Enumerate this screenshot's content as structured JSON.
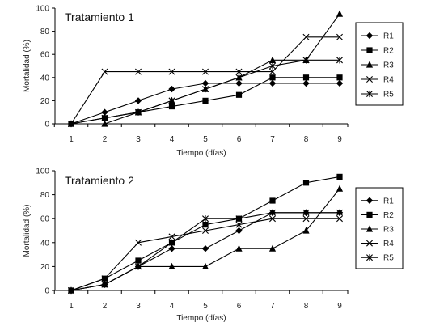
{
  "chart_data": [
    {
      "type": "line",
      "title": "Tratamiento 1",
      "xlabel": "Tiempo (días)",
      "ylabel": "Mortalidad (%)",
      "ylim": [
        0,
        100
      ],
      "yticks": [
        0,
        20,
        40,
        60,
        80,
        100
      ],
      "x": [
        1,
        2,
        3,
        4,
        5,
        6,
        7,
        8,
        9
      ],
      "grid": false,
      "legend_position": "right",
      "series": [
        {
          "name": "R1",
          "marker": "diamond",
          "values": [
            0,
            10,
            20,
            30,
            35,
            35,
            35,
            35,
            35
          ]
        },
        {
          "name": "R2",
          "marker": "square",
          "values": [
            0,
            5,
            10,
            15,
            20,
            25,
            40,
            40,
            40
          ]
        },
        {
          "name": "R3",
          "marker": "triangle",
          "values": [
            0,
            0,
            10,
            20,
            30,
            40,
            55,
            55,
            95
          ]
        },
        {
          "name": "R4",
          "marker": "x",
          "values": [
            0,
            45,
            45,
            45,
            45,
            45,
            45,
            75,
            75
          ]
        },
        {
          "name": "R5",
          "marker": "star",
          "values": [
            0,
            5,
            10,
            20,
            30,
            40,
            50,
            55,
            55
          ]
        }
      ]
    },
    {
      "type": "line",
      "title": "Tratamiento 2",
      "xlabel": "Tiempo (días)",
      "ylabel": "Mortalidad (%)",
      "ylim": [
        0,
        100
      ],
      "yticks": [
        0,
        20,
        40,
        60,
        80,
        100
      ],
      "x": [
        1,
        2,
        3,
        4,
        5,
        6,
        7,
        8,
        9
      ],
      "grid": false,
      "legend_position": "right",
      "series": [
        {
          "name": "R1",
          "marker": "diamond",
          "values": [
            0,
            5,
            20,
            35,
            35,
            50,
            65,
            65,
            65
          ]
        },
        {
          "name": "R2",
          "marker": "square",
          "values": [
            0,
            10,
            25,
            40,
            55,
            60,
            75,
            90,
            95
          ]
        },
        {
          "name": "R3",
          "marker": "triangle",
          "values": [
            0,
            5,
            20,
            20,
            20,
            35,
            35,
            50,
            85
          ]
        },
        {
          "name": "R4",
          "marker": "x",
          "values": [
            0,
            10,
            40,
            45,
            50,
            55,
            60,
            60,
            60
          ]
        },
        {
          "name": "R5",
          "marker": "star",
          "values": [
            0,
            5,
            20,
            40,
            60,
            60,
            65,
            65,
            65
          ]
        }
      ]
    }
  ]
}
